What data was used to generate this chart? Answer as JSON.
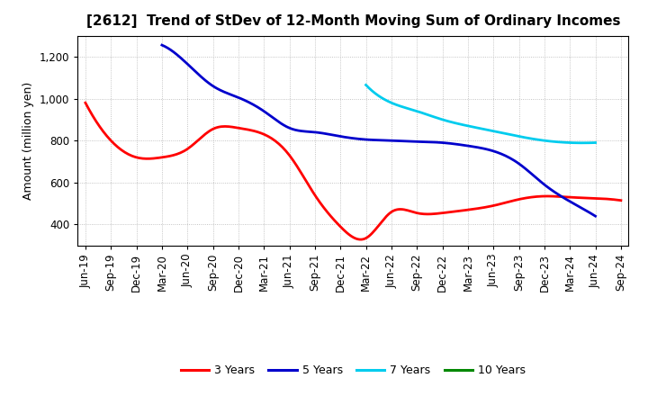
{
  "title": "[2612]  Trend of StDev of 12-Month Moving Sum of Ordinary Incomes",
  "ylabel": "Amount (million yen)",
  "background_color": "#ffffff",
  "grid_color": "#aaaaaa",
  "x_labels": [
    "Jun-19",
    "Sep-19",
    "Dec-19",
    "Mar-20",
    "Jun-20",
    "Sep-20",
    "Dec-20",
    "Mar-21",
    "Jun-21",
    "Sep-21",
    "Dec-21",
    "Mar-22",
    "Jun-22",
    "Sep-22",
    "Dec-22",
    "Mar-23",
    "Jun-23",
    "Sep-23",
    "Dec-23",
    "Mar-24",
    "Jun-24",
    "Sep-24"
  ],
  "series": {
    "3 Years": {
      "color": "#ff0000",
      "data_y": [
        980,
        800,
        720,
        720,
        760,
        855,
        860,
        830,
        730,
        540,
        390,
        335,
        460,
        455,
        455,
        470,
        490,
        520,
        535,
        530,
        525,
        515
      ]
    },
    "5 Years": {
      "color": "#0000cc",
      "data_y": [
        null,
        null,
        null,
        1255,
        1165,
        1060,
        1005,
        940,
        860,
        840,
        820,
        805,
        800,
        795,
        790,
        775,
        750,
        690,
        590,
        510,
        440,
        null
      ]
    },
    "7 Years": {
      "color": "#00ccee",
      "data_y": [
        null,
        null,
        null,
        null,
        null,
        null,
        null,
        null,
        null,
        null,
        null,
        1065,
        980,
        940,
        900,
        870,
        845,
        820,
        800,
        790,
        790,
        null
      ]
    },
    "10 Years": {
      "color": "#008800",
      "data_y": [
        null,
        null,
        null,
        null,
        null,
        null,
        null,
        null,
        null,
        null,
        null,
        null,
        null,
        null,
        null,
        null,
        null,
        null,
        null,
        null,
        null,
        null
      ]
    }
  },
  "ylim": [
    300,
    1300
  ],
  "yticks": [
    400,
    600,
    800,
    1000,
    1200
  ],
  "ytick_labels": [
    "400",
    "600",
    "800",
    "1,000",
    "1,200"
  ],
  "legend_labels": [
    "3 Years",
    "5 Years",
    "7 Years",
    "10 Years"
  ],
  "legend_colors": [
    "#ff0000",
    "#0000cc",
    "#00ccee",
    "#008800"
  ],
  "title_fontsize": 11,
  "axis_fontsize": 9,
  "tick_fontsize": 8.5
}
